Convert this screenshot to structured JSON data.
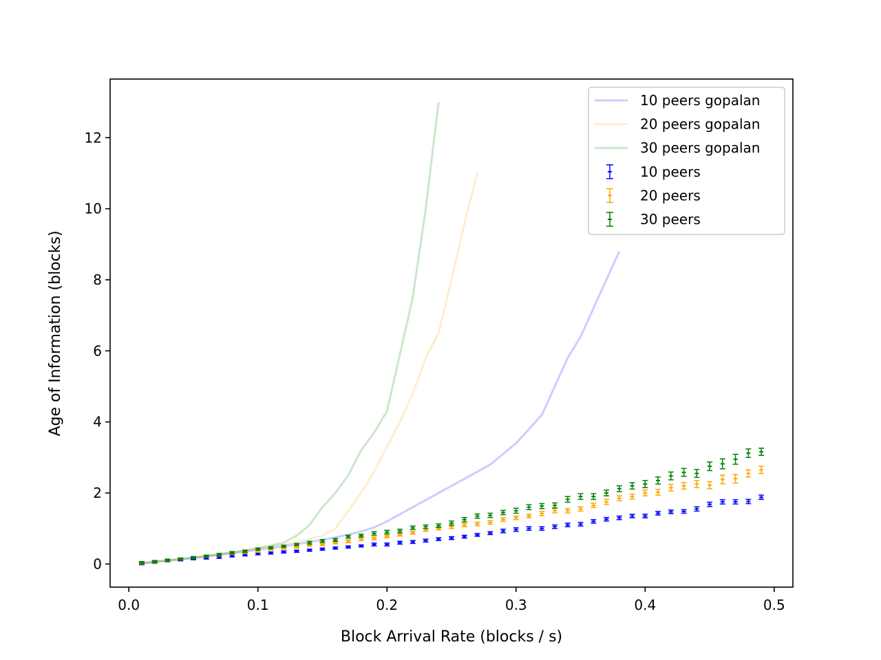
{
  "chart_data": {
    "type": "line",
    "title": "",
    "xlabel": "Block Arrival Rate (blocks / s)",
    "ylabel": "Age of Information (blocks)",
    "xlim": [
      -0.0145,
      0.5145
    ],
    "ylim": [
      -0.65,
      13.65
    ],
    "xticks": [
      0.0,
      0.1,
      0.2,
      0.3,
      0.4,
      0.5
    ],
    "xtick_labels": [
      "0.0",
      "0.1",
      "0.2",
      "0.3",
      "0.4",
      "0.5"
    ],
    "yticks": [
      0,
      2,
      4,
      6,
      8,
      10,
      12
    ],
    "ytick_labels": [
      "0",
      "2",
      "4",
      "6",
      "8",
      "10",
      "12"
    ],
    "grid": false,
    "legend_position": "top-right",
    "lines": [
      {
        "name": "10 peers gopalan",
        "color": "#0000ff",
        "alpha": 0.2,
        "x": [
          0.01,
          0.02,
          0.03,
          0.04,
          0.05,
          0.06,
          0.07,
          0.08,
          0.09,
          0.1,
          0.11,
          0.12,
          0.13,
          0.14,
          0.15,
          0.16,
          0.17,
          0.18,
          0.19,
          0.2,
          0.22,
          0.24,
          0.26,
          0.28,
          0.3,
          0.32,
          0.34,
          0.35,
          0.36,
          0.37,
          0.38
        ],
        "y": [
          0.02,
          0.06,
          0.1,
          0.13,
          0.17,
          0.21,
          0.26,
          0.3,
          0.35,
          0.4,
          0.45,
          0.5,
          0.56,
          0.62,
          0.68,
          0.75,
          0.83,
          0.92,
          1.03,
          1.2,
          1.6,
          2.0,
          2.4,
          2.8,
          3.4,
          4.2,
          5.8,
          6.4,
          7.2,
          8.0,
          8.8
        ]
      },
      {
        "name": "20 peers gopalan",
        "color": "#ffa500",
        "alpha": 0.2,
        "x": [
          0.01,
          0.02,
          0.03,
          0.04,
          0.05,
          0.06,
          0.07,
          0.08,
          0.09,
          0.1,
          0.11,
          0.12,
          0.13,
          0.14,
          0.15,
          0.16,
          0.17,
          0.18,
          0.19,
          0.2,
          0.21,
          0.22,
          0.23,
          0.24,
          0.25,
          0.26,
          0.27
        ],
        "y": [
          0.02,
          0.06,
          0.1,
          0.14,
          0.18,
          0.22,
          0.27,
          0.32,
          0.37,
          0.43,
          0.49,
          0.55,
          0.62,
          0.7,
          0.8,
          1.0,
          1.5,
          2.0,
          2.6,
          3.3,
          4.0,
          4.8,
          5.8,
          6.5,
          8.0,
          9.6,
          11.0
        ]
      },
      {
        "name": "30 peers gopalan",
        "color": "#008000",
        "alpha": 0.2,
        "x": [
          0.01,
          0.02,
          0.03,
          0.04,
          0.05,
          0.06,
          0.07,
          0.08,
          0.09,
          0.1,
          0.11,
          0.12,
          0.13,
          0.14,
          0.15,
          0.16,
          0.17,
          0.18,
          0.19,
          0.2,
          0.21,
          0.22,
          0.23,
          0.24
        ],
        "y": [
          0.02,
          0.06,
          0.1,
          0.14,
          0.18,
          0.23,
          0.28,
          0.33,
          0.39,
          0.45,
          0.52,
          0.6,
          0.8,
          1.1,
          1.6,
          2.0,
          2.5,
          3.2,
          3.7,
          4.3,
          5.9,
          7.5,
          10.0,
          13.0
        ]
      }
    ],
    "series": [
      {
        "name": "10 peers",
        "color": "#0000ff",
        "x": [
          0.01,
          0.02,
          0.03,
          0.04,
          0.05,
          0.06,
          0.07,
          0.08,
          0.09,
          0.1,
          0.11,
          0.12,
          0.13,
          0.14,
          0.15,
          0.16,
          0.17,
          0.18,
          0.19,
          0.2,
          0.21,
          0.22,
          0.23,
          0.24,
          0.25,
          0.26,
          0.27,
          0.28,
          0.29,
          0.3,
          0.31,
          0.32,
          0.33,
          0.34,
          0.35,
          0.36,
          0.37,
          0.38,
          0.39,
          0.4,
          0.41,
          0.42,
          0.43,
          0.44,
          0.45,
          0.46,
          0.47,
          0.48,
          0.49
        ],
        "y": [
          0.01,
          0.05,
          0.09,
          0.12,
          0.15,
          0.17,
          0.19,
          0.23,
          0.26,
          0.29,
          0.31,
          0.34,
          0.36,
          0.39,
          0.42,
          0.45,
          0.48,
          0.51,
          0.55,
          0.55,
          0.6,
          0.62,
          0.66,
          0.7,
          0.73,
          0.77,
          0.82,
          0.87,
          0.93,
          0.97,
          1.0,
          1.0,
          1.05,
          1.1,
          1.12,
          1.2,
          1.26,
          1.3,
          1.35,
          1.35,
          1.43,
          1.47,
          1.48,
          1.55,
          1.68,
          1.75,
          1.75,
          1.76,
          1.88
        ],
        "err": [
          0.03,
          0.03,
          0.03,
          0.03,
          0.03,
          0.03,
          0.03,
          0.03,
          0.03,
          0.03,
          0.03,
          0.03,
          0.03,
          0.03,
          0.03,
          0.03,
          0.03,
          0.03,
          0.04,
          0.04,
          0.04,
          0.04,
          0.04,
          0.04,
          0.04,
          0.04,
          0.04,
          0.04,
          0.05,
          0.05,
          0.05,
          0.05,
          0.05,
          0.05,
          0.05,
          0.05,
          0.05,
          0.05,
          0.05,
          0.05,
          0.05,
          0.05,
          0.05,
          0.06,
          0.06,
          0.06,
          0.06,
          0.06,
          0.06
        ]
      },
      {
        "name": "20 peers",
        "color": "#ffa500",
        "x": [
          0.01,
          0.02,
          0.03,
          0.04,
          0.05,
          0.06,
          0.07,
          0.08,
          0.09,
          0.1,
          0.11,
          0.12,
          0.13,
          0.14,
          0.15,
          0.16,
          0.17,
          0.18,
          0.19,
          0.2,
          0.21,
          0.22,
          0.23,
          0.24,
          0.25,
          0.26,
          0.27,
          0.28,
          0.29,
          0.3,
          0.31,
          0.32,
          0.33,
          0.34,
          0.35,
          0.36,
          0.37,
          0.38,
          0.39,
          0.4,
          0.41,
          0.42,
          0.43,
          0.44,
          0.45,
          0.46,
          0.47,
          0.48,
          0.49
        ],
        "y": [
          0.03,
          0.06,
          0.1,
          0.14,
          0.18,
          0.22,
          0.26,
          0.3,
          0.33,
          0.36,
          0.42,
          0.45,
          0.48,
          0.53,
          0.55,
          0.6,
          0.64,
          0.7,
          0.72,
          0.78,
          0.83,
          0.88,
          0.96,
          1.0,
          1.05,
          1.1,
          1.13,
          1.17,
          1.25,
          1.3,
          1.35,
          1.42,
          1.5,
          1.5,
          1.55,
          1.65,
          1.75,
          1.85,
          1.9,
          2.0,
          2.02,
          2.15,
          2.2,
          2.25,
          2.22,
          2.38,
          2.4,
          2.55,
          2.65
        ],
        "err": [
          0.03,
          0.03,
          0.03,
          0.03,
          0.03,
          0.03,
          0.03,
          0.03,
          0.03,
          0.03,
          0.03,
          0.03,
          0.03,
          0.03,
          0.03,
          0.03,
          0.04,
          0.04,
          0.04,
          0.04,
          0.04,
          0.04,
          0.04,
          0.04,
          0.05,
          0.05,
          0.05,
          0.05,
          0.05,
          0.05,
          0.05,
          0.06,
          0.06,
          0.06,
          0.06,
          0.06,
          0.07,
          0.07,
          0.07,
          0.08,
          0.08,
          0.09,
          0.09,
          0.1,
          0.1,
          0.12,
          0.12,
          0.1,
          0.1
        ]
      },
      {
        "name": "30 peers",
        "color": "#008000",
        "x": [
          0.01,
          0.02,
          0.03,
          0.04,
          0.05,
          0.06,
          0.07,
          0.08,
          0.09,
          0.1,
          0.11,
          0.12,
          0.13,
          0.14,
          0.15,
          0.16,
          0.17,
          0.18,
          0.19,
          0.2,
          0.21,
          0.22,
          0.23,
          0.24,
          0.25,
          0.26,
          0.27,
          0.28,
          0.29,
          0.3,
          0.31,
          0.32,
          0.33,
          0.34,
          0.35,
          0.36,
          0.37,
          0.38,
          0.39,
          0.4,
          0.41,
          0.42,
          0.43,
          0.44,
          0.45,
          0.46,
          0.47,
          0.48,
          0.49
        ],
        "y": [
          0.04,
          0.07,
          0.11,
          0.14,
          0.18,
          0.22,
          0.27,
          0.32,
          0.36,
          0.42,
          0.46,
          0.5,
          0.55,
          0.6,
          0.65,
          0.68,
          0.77,
          0.8,
          0.86,
          0.9,
          0.93,
          1.02,
          1.05,
          1.08,
          1.15,
          1.25,
          1.35,
          1.37,
          1.45,
          1.5,
          1.6,
          1.63,
          1.65,
          1.82,
          1.9,
          1.9,
          2.0,
          2.12,
          2.2,
          2.25,
          2.35,
          2.48,
          2.58,
          2.55,
          2.75,
          2.82,
          2.95,
          3.12,
          3.16
        ],
        "err": [
          0.03,
          0.03,
          0.03,
          0.03,
          0.03,
          0.03,
          0.03,
          0.03,
          0.03,
          0.03,
          0.03,
          0.03,
          0.03,
          0.04,
          0.04,
          0.04,
          0.04,
          0.04,
          0.05,
          0.05,
          0.05,
          0.05,
          0.05,
          0.05,
          0.06,
          0.06,
          0.06,
          0.06,
          0.06,
          0.07,
          0.07,
          0.07,
          0.07,
          0.08,
          0.08,
          0.08,
          0.08,
          0.08,
          0.09,
          0.1,
          0.1,
          0.11,
          0.11,
          0.11,
          0.12,
          0.14,
          0.14,
          0.12,
          0.1
        ]
      }
    ]
  }
}
